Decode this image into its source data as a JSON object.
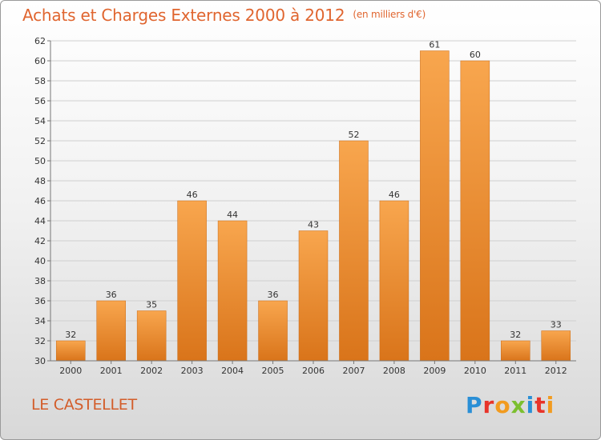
{
  "header": {
    "title": "Achats et Charges Externes 2000 à 2012",
    "unit": "(en milliers d'€)"
  },
  "footer": {
    "place": "LE CASTELLET",
    "brand": [
      "P",
      "r",
      "o",
      "x",
      "i",
      "t",
      "i"
    ],
    "brand_colors": [
      "#2a8fd6",
      "#e8342a",
      "#f29b1f",
      "#7cbf2f",
      "#2a8fd6",
      "#e8342a",
      "#f29b1f"
    ]
  },
  "chart_data": {
    "type": "bar",
    "title": "Achats et Charges Externes 2000 à 2012",
    "subtitle": "(en milliers d'€)",
    "categories": [
      "2000",
      "2001",
      "2002",
      "2003",
      "2004",
      "2005",
      "2006",
      "2007",
      "2008",
      "2009",
      "2010",
      "2011",
      "2012"
    ],
    "values": [
      32,
      36,
      35,
      46,
      44,
      36,
      43,
      52,
      46,
      61,
      60,
      32,
      33
    ],
    "ylim": [
      30,
      62
    ],
    "yticks": [
      30,
      32,
      34,
      36,
      38,
      40,
      42,
      44,
      46,
      48,
      50,
      52,
      54,
      56,
      58,
      60,
      62
    ],
    "grid": true,
    "bar_color_top": "#f8a64e",
    "bar_color_bottom": "#d9741a"
  }
}
